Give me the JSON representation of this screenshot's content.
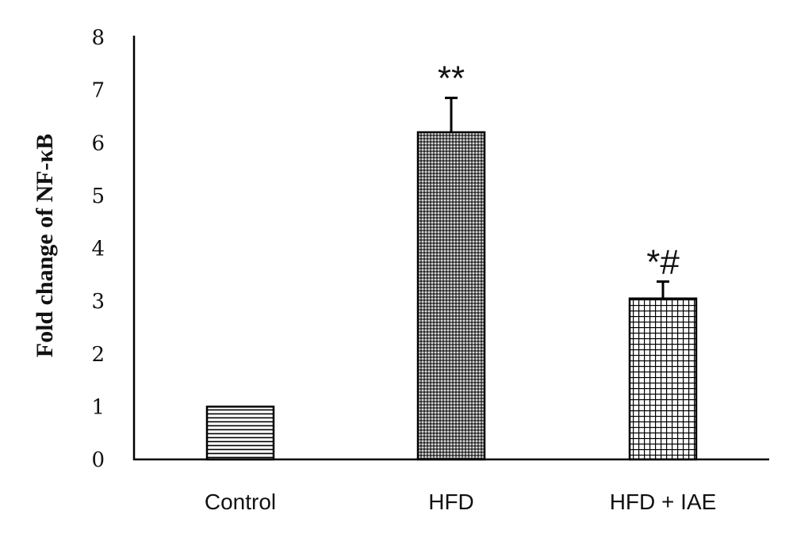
{
  "chart_data": {
    "type": "bar",
    "title": "",
    "xlabel": "",
    "ylabel": "Fold change of NF-κB",
    "ylim": [
      0,
      8
    ],
    "yticks": [
      "0",
      "1",
      "2",
      "3",
      "4",
      "5",
      "6",
      "7",
      "8"
    ],
    "categories": [
      "Control",
      "HFD",
      "HFD + IAE"
    ],
    "values": [
      1.0,
      6.2,
      3.05
    ],
    "error_bars": [
      0,
      0.65,
      0.32
    ],
    "annotations": [
      "",
      "**",
      "*#"
    ],
    "patterns": [
      "horizontal-lines",
      "dense-dots",
      "grid"
    ],
    "grid": false,
    "colors": {
      "axis": "#000000",
      "bar_stroke": "#000000",
      "pattern_ink": "#000000",
      "background": "#ffffff"
    }
  }
}
